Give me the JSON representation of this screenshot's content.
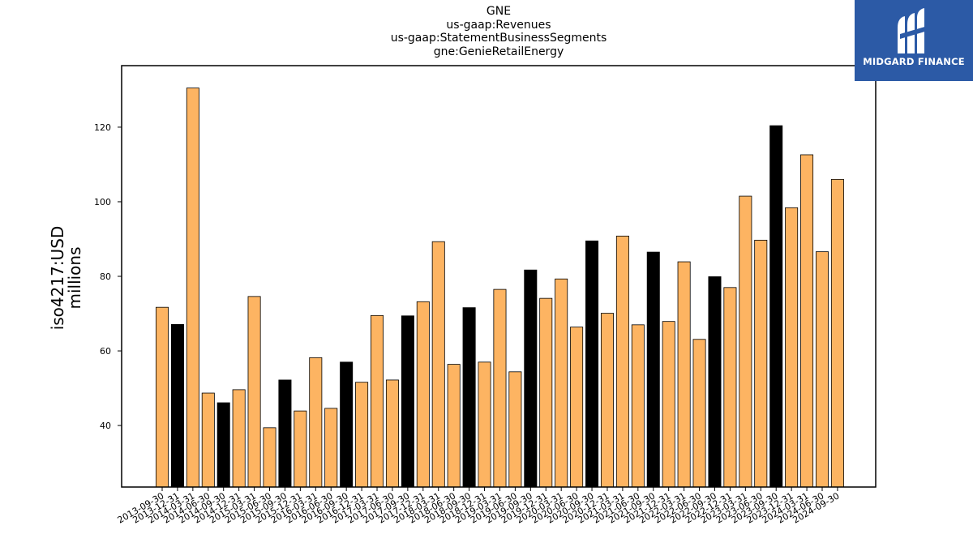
{
  "chart_data": {
    "type": "bar",
    "title_lines": [
      "GNE",
      "us-gaap:Revenues",
      "us-gaap:StatementBusinessSegments",
      "gne:GenieRetailEnergy"
    ],
    "ylabel_lines": [
      "iso4217:USD",
      "millions"
    ],
    "xlabel": "",
    "ylim": [
      23.5,
      136.5
    ],
    "yticks": [
      40,
      60,
      80,
      100,
      120
    ],
    "grid": false,
    "colors": {
      "quarter": "#fdb462",
      "annual": "#000000"
    },
    "categories": [
      "2013-09-30",
      "2013-12-31",
      "2014-03-31",
      "2014-06-30",
      "2014-09-30",
      "2014-12-31",
      "2015-03-31",
      "2015-06-30",
      "2015-09-30",
      "2015-12-31",
      "2016-03-31",
      "2016-06-30",
      "2016-09-30",
      "2016-12-31",
      "2017-03-31",
      "2017-06-30",
      "2017-09-30",
      "2017-12-31",
      "2018-03-31",
      "2018-06-30",
      "2018-09-30",
      "2018-12-31",
      "2019-03-31",
      "2019-06-30",
      "2019-09-30",
      "2019-12-31",
      "2020-03-31",
      "2020-06-30",
      "2020-09-30",
      "2020-12-31",
      "2021-03-31",
      "2021-06-30",
      "2021-09-30",
      "2021-12-31",
      "2022-03-31",
      "2022-06-30",
      "2022-09-30",
      "2022-12-31",
      "2023-03-31",
      "2023-06-30",
      "2023-09-30",
      "2023-12-31",
      "2024-03-31",
      "2024-06-30",
      "2024-09-30"
    ],
    "values": [
      71.7,
      67.1,
      130.5,
      48.7,
      46.1,
      49.6,
      74.6,
      39.4,
      52.2,
      43.9,
      58.2,
      44.6,
      57.0,
      51.6,
      69.5,
      52.2,
      69.4,
      73.2,
      89.3,
      56.4,
      71.6,
      57.0,
      76.5,
      54.4,
      81.7,
      74.1,
      79.3,
      66.4,
      89.5,
      70.1,
      90.8,
      67.0,
      86.5,
      67.9,
      83.9,
      63.1,
      79.9,
      77.0,
      101.5,
      89.7,
      120.4,
      98.4,
      112.6,
      86.6,
      106.0
    ],
    "annual": [
      false,
      true,
      false,
      false,
      true,
      false,
      false,
      false,
      true,
      false,
      false,
      false,
      true,
      false,
      false,
      false,
      true,
      false,
      false,
      false,
      true,
      false,
      false,
      false,
      true,
      false,
      false,
      false,
      true,
      false,
      false,
      false,
      true,
      false,
      false,
      false,
      true,
      false,
      false,
      false,
      true,
      false,
      false,
      false,
      false
    ]
  },
  "logo": {
    "text": "MIDGARD FINANCE"
  }
}
